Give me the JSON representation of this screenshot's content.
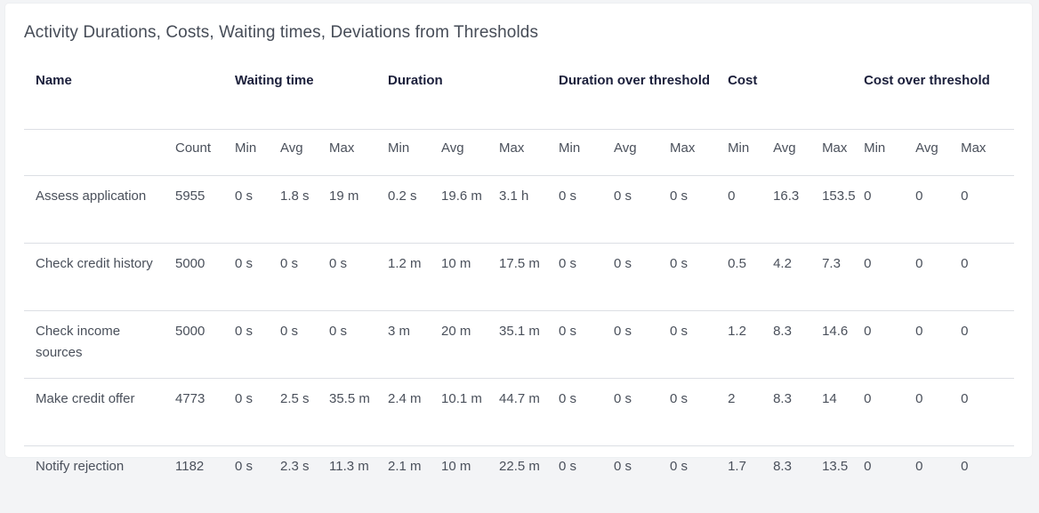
{
  "title": "Activity Durations, Costs, Waiting times, Deviations from Thresholds",
  "group_headers": [
    "Name",
    "Waiting time",
    "Duration",
    "Duration over threshold",
    "Cost",
    "Cost over threshold"
  ],
  "sub_headers": [
    "",
    "Count",
    "Min",
    "Avg",
    "Max",
    "Min",
    "Avg",
    "Max",
    "Min",
    "Avg",
    "Max",
    "Min",
    "Avg",
    "Max",
    "Min",
    "Avg",
    "Max"
  ],
  "rows": [
    [
      "Assess application",
      "5955",
      "0 s",
      "1.8 s",
      "19 m",
      "0.2 s",
      "19.6 m",
      "3.1 h",
      "0 s",
      "0 s",
      "0 s",
      "0",
      "16.3",
      "153.5",
      "0",
      "0",
      "0"
    ],
    [
      "Check credit history",
      "5000",
      "0 s",
      "0 s",
      "0 s",
      "1.2 m",
      "10 m",
      "17.5 m",
      "0 s",
      "0 s",
      "0 s",
      "0.5",
      "4.2",
      "7.3",
      "0",
      "0",
      "0"
    ],
    [
      "Check income sources",
      "5000",
      "0 s",
      "0 s",
      "0 s",
      "3 m",
      "20 m",
      "35.1 m",
      "0 s",
      "0 s",
      "0 s",
      "1.2",
      "8.3",
      "14.6",
      "0",
      "0",
      "0"
    ],
    [
      "Make credit offer",
      "4773",
      "0 s",
      "2.5 s",
      "35.5 m",
      "2.4 m",
      "10.1 m",
      "44.7 m",
      "0 s",
      "0 s",
      "0 s",
      "2",
      "8.3",
      "14",
      "0",
      "0",
      "0"
    ],
    [
      "Notify rejection",
      "1182",
      "0 s",
      "2.3 s",
      "11.3 m",
      "2.1 m",
      "10 m",
      "22.5 m",
      "0 s",
      "0 s",
      "0 s",
      "1.7",
      "8.3",
      "13.5",
      "0",
      "0",
      "0"
    ]
  ]
}
